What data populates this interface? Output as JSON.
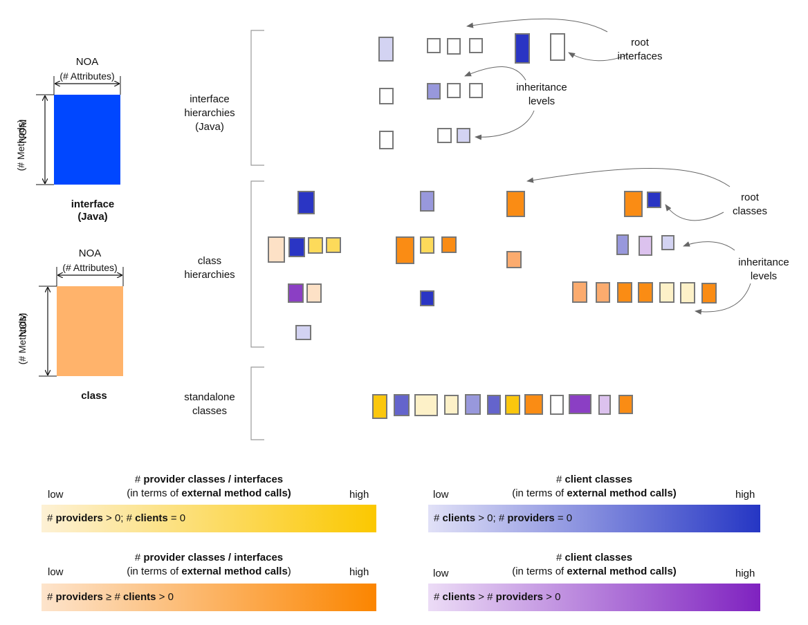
{
  "glyphs": {
    "interface": {
      "noa": "NOA",
      "noa_sub": "(# Attributes)",
      "nom": "NOM",
      "nom_sub": "(# Methods)",
      "caption_1": "interface",
      "caption_2": "(Java)",
      "fill": "#0047ff"
    },
    "class": {
      "noa": "NOA",
      "noa_sub": "(# Attributes)",
      "nom": "NOM",
      "nom_sub": "(# Methods)",
      "caption_1": "class",
      "fill": "#ffb36b"
    }
  },
  "groups": {
    "interface_hierarchies": [
      "interface",
      "hierarchies",
      "(Java)"
    ],
    "class_hierarchies": [
      "class",
      "hierarchies"
    ],
    "standalone_classes": [
      "standalone",
      "classes"
    ]
  },
  "annotations": {
    "root_interfaces": [
      "root",
      "interfaces"
    ],
    "inheritance_levels_1": [
      "inheritance",
      "levels"
    ],
    "root_classes": [
      "root",
      "classes"
    ],
    "inheritance_levels_2": [
      "inheritance",
      "levels"
    ]
  },
  "colors": {
    "white": "#ffffff",
    "blue_light": "#d3d3f2",
    "blue_mid": "#9898dc",
    "blue_mid2": "#6464cc",
    "blue_dark": "#2a35c4",
    "orange_light": "#fde1c6",
    "orange_mid": "#fbab6e",
    "orange_dark": "#fa8c14",
    "yellow_light": "#fdf1c8",
    "yellow_mid": "#fdda5a",
    "yellow_dark": "#fbc70d",
    "purple_light": "#dcc2ee",
    "purple_dark": "#8b3fc4",
    "outline": "#777777"
  },
  "legend": [
    {
      "caption_pre": "# ",
      "caption_bold": "provider classes / interfaces",
      "caption2_pre": "(in terms of ",
      "caption2_bold": "external method calls)",
      "caption2_post": "",
      "low": "low",
      "high": "high",
      "bar": [
        "# ",
        "providers",
        " > 0; # ",
        "clients",
        " = 0"
      ],
      "gradient": [
        "#fdf1d5",
        "#fbc800"
      ]
    },
    {
      "caption_pre": "# ",
      "caption_bold": "client classes",
      "caption2_pre": "(in terms of ",
      "caption2_bold": "external method calls)",
      "caption2_post": "",
      "low": "low",
      "high": "high",
      "bar": [
        "# ",
        "clients",
        " > 0; # ",
        "providers",
        " = 0"
      ],
      "gradient": [
        "#e1e1f7",
        "#2536c4"
      ]
    },
    {
      "caption_pre": "# ",
      "caption_bold": "provider classes / interfaces",
      "caption2_pre": "(in terms of ",
      "caption2_bold": "external method calls",
      "caption2_post": ")",
      "low": "low",
      "high": "high",
      "bar": [
        "# ",
        "providers",
        " ≥ # ",
        "clients",
        " > 0"
      ],
      "gradient": [
        "#fde4cc",
        "#fb8500"
      ]
    },
    {
      "caption_pre": "# ",
      "caption_bold": "client classes",
      "caption2_pre": "(in terms of ",
      "caption2_bold": "external method calls)",
      "caption2_post": "",
      "low": "low",
      "high": "high",
      "bar": [
        "# ",
        "clients",
        " > # ",
        "providers",
        " > 0"
      ],
      "gradient": [
        "#ecdcf6",
        "#7f22c0"
      ]
    }
  ]
}
